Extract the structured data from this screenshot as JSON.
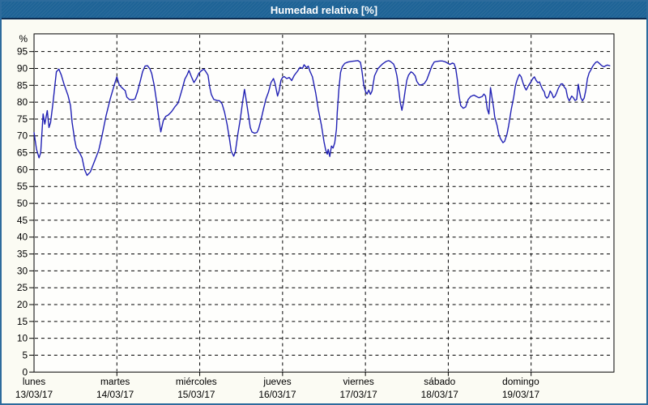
{
  "window": {
    "title": "Humedad relativa [%]"
  },
  "colors": {
    "titlebar_bg": "#1e6396",
    "titlebar_border": "#0d2d52",
    "titlebar_text": "#ffffff",
    "outer_border": "#2d6b9c",
    "page_bg": "#fbfbf3",
    "plot_bg": "#fefefc",
    "grid": "#000000",
    "axis": "#000000",
    "line": "#2020b4"
  },
  "chart_data": {
    "type": "line",
    "title": "Humedad relativa [%]",
    "y_unit": "%",
    "y_min": 0,
    "y_max": 95,
    "y_tick_step": 5,
    "y_tick_labels": [
      "0",
      "5",
      "10",
      "15",
      "20",
      "25",
      "30",
      "35",
      "40",
      "45",
      "50",
      "55",
      "60",
      "65",
      "70",
      "75",
      "80",
      "85",
      "90",
      "95"
    ],
    "grid": "dashed",
    "legend_position": "none",
    "x_days": [
      {
        "name": "lunes",
        "date": "13/03/17"
      },
      {
        "name": "martes",
        "date": "14/03/17"
      },
      {
        "name": "miércoles",
        "date": "15/03/17"
      },
      {
        "name": "jueves",
        "date": "16/03/17"
      },
      {
        "name": "viernes",
        "date": "17/03/17"
      },
      {
        "name": "sábado",
        "date": "18/03/17"
      },
      {
        "name": "domingo",
        "date": "19/03/17"
      }
    ],
    "series": [
      {
        "name": "Humedad relativa [%]",
        "color": "#2020b4",
        "x_unit": "days_from_start",
        "points": [
          [
            0,
            71
          ],
          [
            0.03,
            66
          ],
          [
            0.06,
            63.5
          ],
          [
            0.08,
            65
          ],
          [
            0.11,
            76.5
          ],
          [
            0.13,
            73.5
          ],
          [
            0.16,
            77.5
          ],
          [
            0.18,
            72.5
          ],
          [
            0.2,
            74
          ],
          [
            0.23,
            80
          ],
          [
            0.27,
            89
          ],
          [
            0.3,
            89.8
          ],
          [
            0.33,
            88
          ],
          [
            0.36,
            85.5
          ],
          [
            0.41,
            82
          ],
          [
            0.44,
            79
          ],
          [
            0.46,
            74
          ],
          [
            0.49,
            69
          ],
          [
            0.51,
            66.5
          ],
          [
            0.55,
            65
          ],
          [
            0.58,
            63.5
          ],
          [
            0.61,
            60
          ],
          [
            0.64,
            58.3
          ],
          [
            0.68,
            59.3
          ],
          [
            0.73,
            62.5
          ],
          [
            0.78,
            65.7
          ],
          [
            0.82,
            70
          ],
          [
            0.87,
            76
          ],
          [
            0.92,
            81
          ],
          [
            0.97,
            85.2
          ],
          [
            1,
            87.5
          ],
          [
            1.03,
            85.1
          ],
          [
            1.06,
            84.3
          ],
          [
            1.1,
            83.4
          ],
          [
            1.12,
            81.5
          ],
          [
            1.15,
            80.8
          ],
          [
            1.19,
            80.7
          ],
          [
            1.22,
            81
          ],
          [
            1.25,
            83.2
          ],
          [
            1.28,
            86
          ],
          [
            1.31,
            89
          ],
          [
            1.34,
            90.7
          ],
          [
            1.37,
            90.8
          ],
          [
            1.4,
            89.8
          ],
          [
            1.42,
            88.5
          ],
          [
            1.45,
            85
          ],
          [
            1.48,
            80
          ],
          [
            1.51,
            74.5
          ],
          [
            1.53,
            71.2
          ],
          [
            1.56,
            74.5
          ],
          [
            1.59,
            75.8
          ],
          [
            1.62,
            76.2
          ],
          [
            1.66,
            77.2
          ],
          [
            1.7,
            78.6
          ],
          [
            1.74,
            79.8
          ],
          [
            1.76,
            81.5
          ],
          [
            1.79,
            84
          ],
          [
            1.82,
            86.8
          ],
          [
            1.85,
            88.2
          ],
          [
            1.87,
            89.4
          ],
          [
            1.9,
            87.5
          ],
          [
            1.93,
            85.8
          ],
          [
            1.96,
            87
          ],
          [
            1.99,
            88.6
          ],
          [
            2.02,
            89.3
          ],
          [
            2.05,
            89.8
          ],
          [
            2.07,
            89.2
          ],
          [
            2.1,
            88
          ],
          [
            2.12,
            84.5
          ],
          [
            2.14,
            82.3
          ],
          [
            2.17,
            80.8
          ],
          [
            2.21,
            80.5
          ],
          [
            2.24,
            80.4
          ],
          [
            2.27,
            79.5
          ],
          [
            2.3,
            77
          ],
          [
            2.33,
            73.5
          ],
          [
            2.36,
            69
          ],
          [
            2.38,
            65.5
          ],
          [
            2.41,
            64
          ],
          [
            2.43,
            65.2
          ],
          [
            2.46,
            70.5
          ],
          [
            2.49,
            75
          ],
          [
            2.52,
            80.5
          ],
          [
            2.54,
            83.8
          ],
          [
            2.56,
            80.8
          ],
          [
            2.58,
            77.5
          ],
          [
            2.61,
            72.5
          ],
          [
            2.63,
            71.2
          ],
          [
            2.66,
            70.8
          ],
          [
            2.69,
            71
          ],
          [
            2.71,
            72
          ],
          [
            2.74,
            74.8
          ],
          [
            2.77,
            78
          ],
          [
            2.8,
            81
          ],
          [
            2.83,
            83
          ],
          [
            2.86,
            85.8
          ],
          [
            2.89,
            87
          ],
          [
            2.91,
            85.5
          ],
          [
            2.94,
            81.8
          ],
          [
            2.96,
            83.5
          ],
          [
            2.98,
            86.5
          ],
          [
            3,
            87.3
          ],
          [
            3.02,
            87.6
          ],
          [
            3.05,
            87
          ],
          [
            3.08,
            87.3
          ],
          [
            3.11,
            86.4
          ],
          [
            3.14,
            87.9
          ],
          [
            3.18,
            89.2
          ],
          [
            3.21,
            90.3
          ],
          [
            3.24,
            90
          ],
          [
            3.26,
            91.1
          ],
          [
            3.29,
            90.2
          ],
          [
            3.31,
            90.7
          ],
          [
            3.33,
            89.2
          ],
          [
            3.36,
            87.5
          ],
          [
            3.4,
            82.7
          ],
          [
            3.43,
            78
          ],
          [
            3.47,
            73
          ],
          [
            3.5,
            68.3
          ],
          [
            3.52,
            65.8
          ],
          [
            3.54,
            64.6
          ],
          [
            3.55,
            66
          ],
          [
            3.57,
            63.9
          ],
          [
            3.59,
            67
          ],
          [
            3.61,
            66.4
          ],
          [
            3.63,
            68
          ],
          [
            3.65,
            72
          ],
          [
            3.66,
            77
          ],
          [
            3.68,
            84
          ],
          [
            3.7,
            88.8
          ],
          [
            3.72,
            90.5
          ],
          [
            3.75,
            91.5
          ],
          [
            3.79,
            91.9
          ],
          [
            3.83,
            92.1
          ],
          [
            3.87,
            92.2
          ],
          [
            3.91,
            92.3
          ],
          [
            3.94,
            91.8
          ],
          [
            3.96,
            89
          ],
          [
            3.98,
            85
          ],
          [
            4,
            83.2
          ],
          [
            4.02,
            82.4
          ],
          [
            4.04,
            83.6
          ],
          [
            4.06,
            82.3
          ],
          [
            4.08,
            83.3
          ],
          [
            4.11,
            87.8
          ],
          [
            4.15,
            89.9
          ],
          [
            4.18,
            90.7
          ],
          [
            4.21,
            91.4
          ],
          [
            4.25,
            92.1
          ],
          [
            4.28,
            92.3
          ],
          [
            4.3,
            92.1
          ],
          [
            4.34,
            91.3
          ],
          [
            4.36,
            90
          ],
          [
            4.38,
            87.8
          ],
          [
            4.4,
            84.3
          ],
          [
            4.42,
            80
          ],
          [
            4.44,
            77.6
          ],
          [
            4.46,
            80
          ],
          [
            4.48,
            83.5
          ],
          [
            4.5,
            86.5
          ],
          [
            4.52,
            88
          ],
          [
            4.55,
            89
          ],
          [
            4.57,
            88.7
          ],
          [
            4.6,
            87.8
          ],
          [
            4.62,
            86.2
          ],
          [
            4.65,
            85.1
          ],
          [
            4.68,
            85.2
          ],
          [
            4.71,
            85.5
          ],
          [
            4.74,
            86.6
          ],
          [
            4.77,
            88.6
          ],
          [
            4.8,
            90.6
          ],
          [
            4.83,
            91.9
          ],
          [
            4.86,
            92.1
          ],
          [
            4.9,
            92.2
          ],
          [
            4.93,
            92.2
          ],
          [
            4.96,
            92
          ],
          [
            4.99,
            91.6
          ],
          [
            5.02,
            91.2
          ],
          [
            5.05,
            91.6
          ],
          [
            5.07,
            91.4
          ],
          [
            5.09,
            90
          ],
          [
            5.11,
            86.5
          ],
          [
            5.13,
            82
          ],
          [
            5.15,
            79
          ],
          [
            5.18,
            78.2
          ],
          [
            5.21,
            78.6
          ],
          [
            5.24,
            80.8
          ],
          [
            5.27,
            81.7
          ],
          [
            5.31,
            82.1
          ],
          [
            5.34,
            81.7
          ],
          [
            5.37,
            81.3
          ],
          [
            5.41,
            81.7
          ],
          [
            5.43,
            82.4
          ],
          [
            5.45,
            81.8
          ],
          [
            5.47,
            78
          ],
          [
            5.49,
            76.5
          ],
          [
            5.51,
            84.3
          ],
          [
            5.53,
            81
          ],
          [
            5.55,
            78
          ],
          [
            5.56,
            75.7
          ],
          [
            5.59,
            73
          ],
          [
            5.61,
            70.5
          ],
          [
            5.63,
            69.2
          ],
          [
            5.66,
            68
          ],
          [
            5.68,
            68.4
          ],
          [
            5.71,
            70.6
          ],
          [
            5.73,
            73.2
          ],
          [
            5.76,
            77.8
          ],
          [
            5.79,
            81.5
          ],
          [
            5.81,
            84.8
          ],
          [
            5.83,
            86.5
          ],
          [
            5.85,
            87.8
          ],
          [
            5.86,
            88.2
          ],
          [
            5.88,
            87.5
          ],
          [
            5.9,
            85.9
          ],
          [
            5.92,
            84.5
          ],
          [
            5.94,
            83.6
          ],
          [
            5.97,
            85
          ],
          [
            5.99,
            85.7
          ],
          [
            6.02,
            87
          ],
          [
            6.04,
            87.5
          ],
          [
            6.06,
            86.5
          ],
          [
            6.08,
            85.8
          ],
          [
            6.1,
            86
          ],
          [
            6.12,
            84.8
          ],
          [
            6.14,
            83.7
          ],
          [
            6.16,
            83
          ],
          [
            6.17,
            81.8
          ],
          [
            6.19,
            81.2
          ],
          [
            6.21,
            81.7
          ],
          [
            6.23,
            83.3
          ],
          [
            6.25,
            82.6
          ],
          [
            6.27,
            81.3
          ],
          [
            6.29,
            81.8
          ],
          [
            6.31,
            82.9
          ],
          [
            6.33,
            84.2
          ],
          [
            6.36,
            85.4
          ],
          [
            6.38,
            85.4
          ],
          [
            6.4,
            84.5
          ],
          [
            6.42,
            83.9
          ],
          [
            6.44,
            81.5
          ],
          [
            6.46,
            80.4
          ],
          [
            6.47,
            80.8
          ],
          [
            6.49,
            81.8
          ],
          [
            6.51,
            81.3
          ],
          [
            6.53,
            80.5
          ],
          [
            6.55,
            80.8
          ],
          [
            6.57,
            85.3
          ],
          [
            6.58,
            83.7
          ],
          [
            6.6,
            81.3
          ],
          [
            6.62,
            80.4
          ],
          [
            6.64,
            81.2
          ],
          [
            6.66,
            83.5
          ],
          [
            6.68,
            87
          ],
          [
            6.7,
            88.7
          ],
          [
            6.72,
            89.5
          ],
          [
            6.74,
            90.5
          ],
          [
            6.76,
            91.2
          ],
          [
            6.78,
            91.8
          ],
          [
            6.8,
            92
          ],
          [
            6.82,
            91.6
          ],
          [
            6.84,
            91.1
          ],
          [
            6.86,
            90.7
          ],
          [
            6.88,
            90.5
          ],
          [
            6.9,
            90.8
          ],
          [
            6.92,
            91
          ],
          [
            6.95,
            90.8
          ]
        ]
      }
    ]
  }
}
